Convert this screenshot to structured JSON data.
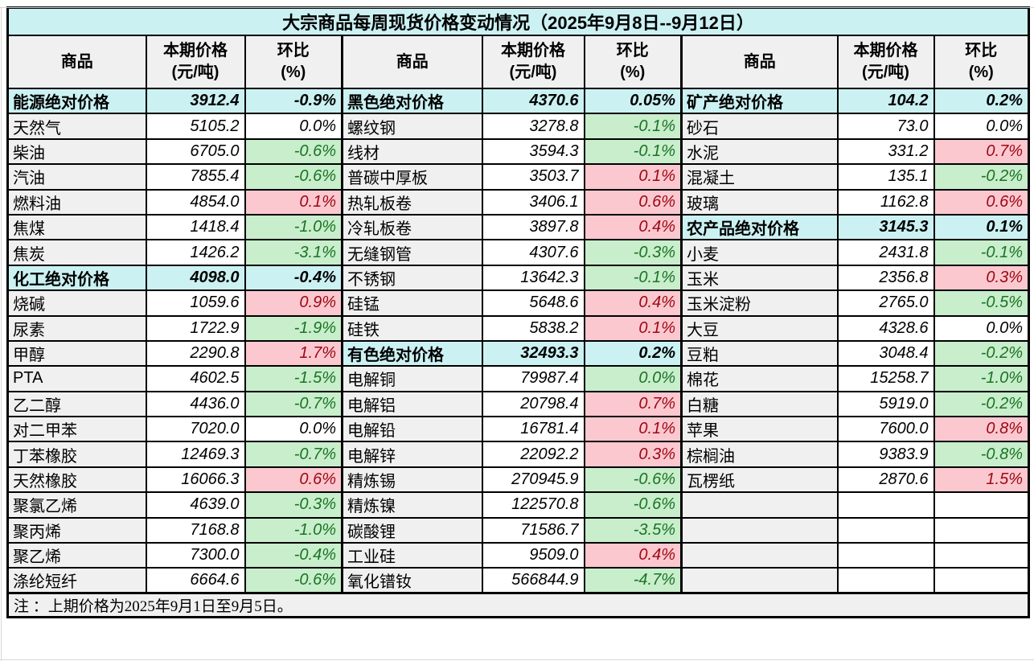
{
  "title": "大宗商品每周现货价格变动情况（2025年9月8日--9月12日）",
  "note": "注 ：上期价格为2025年9月1日至9月5日。",
  "header": {
    "columns": [
      {
        "key": "commodity",
        "line1": "商品",
        "line2": ""
      },
      {
        "key": "price",
        "line1": "本期价格",
        "line2": "(元/吨)"
      },
      {
        "key": "pct",
        "line1": "环比",
        "line2": "(%)"
      }
    ]
  },
  "colors": {
    "title_bg": "#cbf1f3",
    "category_bg": "#cbf1f3",
    "header_bg": "#f0f0f0",
    "name_col_bg": "#f0f0f0",
    "green_fill": "#c8eecc",
    "green_text": "#1b7324",
    "red_fill": "#fbc8d0",
    "red_text": "#9c0712",
    "border": "#000000"
  },
  "groups": [
    {
      "name": "group-1",
      "rows": [
        {
          "name": "能源绝对价格",
          "price": "3912.4",
          "pct": "-0.9%",
          "category": true,
          "fill": "none"
        },
        {
          "name": "天然气",
          "price": "5105.2",
          "pct": "0.0%",
          "category": false,
          "fill": "none"
        },
        {
          "name": "柴油",
          "price": "6705.0",
          "pct": "-0.6%",
          "category": false,
          "fill": "green"
        },
        {
          "name": "汽油",
          "price": "7855.4",
          "pct": "-0.6%",
          "category": false,
          "fill": "green"
        },
        {
          "name": "燃料油",
          "price": "4854.0",
          "pct": "0.1%",
          "category": false,
          "fill": "red"
        },
        {
          "name": "焦煤",
          "price": "1418.4",
          "pct": "-1.0%",
          "category": false,
          "fill": "green"
        },
        {
          "name": "焦炭",
          "price": "1426.2",
          "pct": "-3.1%",
          "category": false,
          "fill": "green"
        },
        {
          "name": "化工绝对价格",
          "price": "4098.0",
          "pct": "-0.4%",
          "category": true,
          "fill": "none"
        },
        {
          "name": "烧碱",
          "price": "1059.6",
          "pct": "0.9%",
          "category": false,
          "fill": "red"
        },
        {
          "name": "尿素",
          "price": "1722.9",
          "pct": "-1.9%",
          "category": false,
          "fill": "green"
        },
        {
          "name": "甲醇",
          "price": "2290.8",
          "pct": "1.7%",
          "category": false,
          "fill": "red"
        },
        {
          "name": "PTA",
          "price": "4602.5",
          "pct": "-1.5%",
          "category": false,
          "fill": "green"
        },
        {
          "name": "乙二醇",
          "price": "4436.0",
          "pct": "-0.7%",
          "category": false,
          "fill": "green"
        },
        {
          "name": "对二甲苯",
          "price": "7020.0",
          "pct": "0.0%",
          "category": false,
          "fill": "none"
        },
        {
          "name": "丁苯橡胶",
          "price": "12469.3",
          "pct": "-0.7%",
          "category": false,
          "fill": "green"
        },
        {
          "name": "天然橡胶",
          "price": "16066.3",
          "pct": "0.6%",
          "category": false,
          "fill": "red"
        },
        {
          "name": "聚氯乙烯",
          "price": "4639.0",
          "pct": "-0.3%",
          "category": false,
          "fill": "green"
        },
        {
          "name": "聚丙烯",
          "price": "7168.8",
          "pct": "-1.0%",
          "category": false,
          "fill": "green"
        },
        {
          "name": "聚乙烯",
          "price": "7300.0",
          "pct": "-0.4%",
          "category": false,
          "fill": "green"
        },
        {
          "name": "涤纶短纤",
          "price": "6664.6",
          "pct": "-0.6%",
          "category": false,
          "fill": "green"
        }
      ]
    },
    {
      "name": "group-2",
      "rows": [
        {
          "name": "黑色绝对价格",
          "price": "4370.6",
          "pct": "0.05%",
          "category": true,
          "fill": "none"
        },
        {
          "name": "螺纹钢",
          "price": "3278.8",
          "pct": "-0.1%",
          "category": false,
          "fill": "green"
        },
        {
          "name": "线材",
          "price": "3594.3",
          "pct": "-0.1%",
          "category": false,
          "fill": "green"
        },
        {
          "name": "普碳中厚板",
          "price": "3503.7",
          "pct": "0.1%",
          "category": false,
          "fill": "red"
        },
        {
          "name": "热轧板卷",
          "price": "3406.1",
          "pct": "0.6%",
          "category": false,
          "fill": "red"
        },
        {
          "name": "冷轧板卷",
          "price": "3897.8",
          "pct": "0.4%",
          "category": false,
          "fill": "red"
        },
        {
          "name": "无缝钢管",
          "price": "4307.6",
          "pct": "-0.3%",
          "category": false,
          "fill": "green"
        },
        {
          "name": "不锈钢",
          "price": "13642.3",
          "pct": "-0.1%",
          "category": false,
          "fill": "green"
        },
        {
          "name": "硅锰",
          "price": "5648.6",
          "pct": "0.4%",
          "category": false,
          "fill": "red"
        },
        {
          "name": "硅铁",
          "price": "5838.2",
          "pct": "0.1%",
          "category": false,
          "fill": "red"
        },
        {
          "name": "有色绝对价格",
          "price": "32493.3",
          "pct": "0.2%",
          "category": true,
          "fill": "none"
        },
        {
          "name": "电解铜",
          "price": "79987.4",
          "pct": "0.0%",
          "category": false,
          "fill": "green"
        },
        {
          "name": "电解铝",
          "price": "20798.4",
          "pct": "0.7%",
          "category": false,
          "fill": "red"
        },
        {
          "name": "电解铅",
          "price": "16781.4",
          "pct": "0.1%",
          "category": false,
          "fill": "red"
        },
        {
          "name": "电解锌",
          "price": "22092.2",
          "pct": "0.3%",
          "category": false,
          "fill": "red"
        },
        {
          "name": "精炼锡",
          "price": "270945.9",
          "pct": "-0.6%",
          "category": false,
          "fill": "green"
        },
        {
          "name": "精炼镍",
          "price": "122570.8",
          "pct": "-0.6%",
          "category": false,
          "fill": "green"
        },
        {
          "name": "碳酸锂",
          "price": "71586.7",
          "pct": "-3.5%",
          "category": false,
          "fill": "green"
        },
        {
          "name": "工业硅",
          "price": "9509.0",
          "pct": "0.4%",
          "category": false,
          "fill": "red"
        },
        {
          "name": "氧化镨钕",
          "price": "566844.9",
          "pct": "-4.7%",
          "category": false,
          "fill": "green"
        }
      ]
    },
    {
      "name": "group-3",
      "rows": [
        {
          "name": "矿产绝对价格",
          "price": "104.2",
          "pct": "0.2%",
          "category": true,
          "fill": "none"
        },
        {
          "name": "砂石",
          "price": "73.0",
          "pct": "0.0%",
          "category": false,
          "fill": "none"
        },
        {
          "name": "水泥",
          "price": "331.2",
          "pct": "0.7%",
          "category": false,
          "fill": "red"
        },
        {
          "name": "混凝土",
          "price": "135.1",
          "pct": "-0.2%",
          "category": false,
          "fill": "green"
        },
        {
          "name": "玻璃",
          "price": "1162.8",
          "pct": "0.6%",
          "category": false,
          "fill": "red"
        },
        {
          "name": "农产品绝对价格",
          "price": "3145.3",
          "pct": "0.1%",
          "category": true,
          "fill": "none"
        },
        {
          "name": "小麦",
          "price": "2431.8",
          "pct": "-0.1%",
          "category": false,
          "fill": "green"
        },
        {
          "name": "玉米",
          "price": "2356.8",
          "pct": "0.3%",
          "category": false,
          "fill": "red"
        },
        {
          "name": "玉米淀粉",
          "price": "2765.0",
          "pct": "-0.5%",
          "category": false,
          "fill": "green"
        },
        {
          "name": "大豆",
          "price": "4328.6",
          "pct": "0.0%",
          "category": false,
          "fill": "none"
        },
        {
          "name": "豆粕",
          "price": "3048.4",
          "pct": "-0.2%",
          "category": false,
          "fill": "green"
        },
        {
          "name": "棉花",
          "price": "15258.7",
          "pct": "-1.0%",
          "category": false,
          "fill": "green"
        },
        {
          "name": "白糖",
          "price": "5919.0",
          "pct": "-0.2%",
          "category": false,
          "fill": "green"
        },
        {
          "name": "苹果",
          "price": "7600.0",
          "pct": "0.8%",
          "category": false,
          "fill": "red"
        },
        {
          "name": "棕榈油",
          "price": "9383.9",
          "pct": "-0.8%",
          "category": false,
          "fill": "green"
        },
        {
          "name": "瓦楞纸",
          "price": "2870.6",
          "pct": "1.5%",
          "category": false,
          "fill": "red"
        },
        {
          "name": "",
          "price": "",
          "pct": "",
          "category": false,
          "fill": "none"
        },
        {
          "name": "",
          "price": "",
          "pct": "",
          "category": false,
          "fill": "none"
        },
        {
          "name": "",
          "price": "",
          "pct": "",
          "category": false,
          "fill": "none"
        },
        {
          "name": "",
          "price": "",
          "pct": "",
          "category": false,
          "fill": "none"
        }
      ]
    }
  ]
}
